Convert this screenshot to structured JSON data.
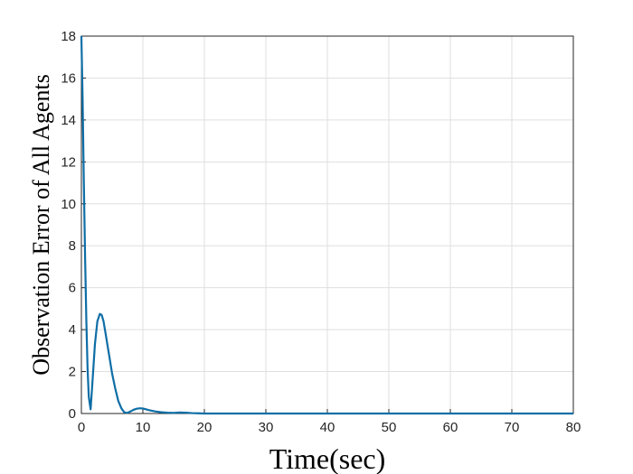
{
  "chart_data": {
    "type": "line",
    "xlabel": "Time(sec)",
    "ylabel": "Observation Error of All Agents",
    "x": [
      0,
      0.2,
      0.4,
      0.6,
      0.8,
      1.0,
      1.2,
      1.5,
      1.8,
      2.2,
      2.6,
      3.0,
      3.3,
      3.6,
      4.0,
      4.5,
      5,
      5.5,
      6,
      6.5,
      7,
      7.5,
      8,
      8.5,
      9,
      9.5,
      10,
      10.5,
      11,
      12,
      13,
      14,
      15,
      16,
      17,
      18,
      19,
      20,
      30,
      40,
      50,
      60,
      70,
      80
    ],
    "series": [
      {
        "color": "#0e6ea6",
        "values": [
          18,
          15,
          11,
          7.5,
          4.5,
          2.2,
          0.8,
          0.2,
          1.5,
          3.3,
          4.4,
          4.75,
          4.7,
          4.4,
          3.7,
          2.8,
          1.9,
          1.2,
          0.6,
          0.25,
          0.05,
          0.03,
          0.1,
          0.18,
          0.23,
          0.25,
          0.24,
          0.2,
          0.16,
          0.1,
          0.06,
          0.04,
          0.03,
          0.05,
          0.04,
          0.02,
          0.01,
          0,
          0,
          0,
          0,
          0,
          0,
          0
        ]
      }
    ],
    "xlim": [
      0,
      80
    ],
    "ylim": [
      0,
      18
    ],
    "xticks": [
      0,
      10,
      20,
      30,
      40,
      50,
      60,
      70,
      80
    ],
    "yticks": [
      0,
      2,
      4,
      6,
      8,
      10,
      12,
      14,
      16,
      18
    ],
    "grid": true
  }
}
